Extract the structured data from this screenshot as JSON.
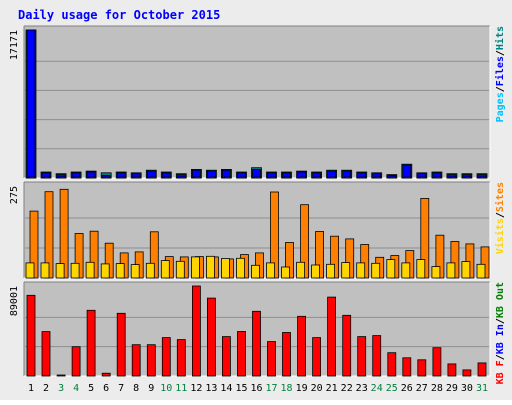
{
  "colors": {
    "background": "#ececec",
    "panel": "#c0c0c0",
    "grid": "#8e8e8e",
    "title": "#0000ff",
    "pages": "#00c0ff",
    "files": "#0000ff",
    "hits": "#008080",
    "visits": "#ffd500",
    "sites": "#ff8000",
    "kbin": "#0000ff",
    "kbout": "#008000",
    "kbf": "#ff0000",
    "weekend": "#008040",
    "day": "#000000"
  },
  "chart_data": {
    "title": "Daily usage for October 2015",
    "x": [
      "1",
      "2",
      "3",
      "4",
      "5",
      "6",
      "7",
      "8",
      "9",
      "10",
      "11",
      "12",
      "13",
      "14",
      "15",
      "16",
      "17",
      "18",
      "19",
      "20",
      "21",
      "22",
      "23",
      "24",
      "25",
      "26",
      "27",
      "28",
      "29",
      "30",
      "31"
    ],
    "weekend_days": [
      "3",
      "4",
      "10",
      "11",
      "17",
      "18",
      "24",
      "25",
      "31"
    ],
    "panels": [
      {
        "type": "bar",
        "ylabel_tick": "17171",
        "ylim": [
          0,
          17171
        ],
        "legend": [
          "Pages",
          "Files",
          "Hits"
        ],
        "series": [
          {
            "name": "Hits",
            "values": [
              17171,
              700,
              500,
              700,
              800,
              600,
              700,
              600,
              900,
              700,
              500,
              1000,
              900,
              1000,
              700,
              1200,
              700,
              700,
              800,
              700,
              900,
              900,
              700,
              600,
              400,
              1600,
              600,
              700,
              500,
              500,
              500
            ]
          },
          {
            "name": "Files",
            "values": [
              17171,
              600,
              400,
              600,
              700,
              300,
              600,
              500,
              800,
              600,
              400,
              900,
              800,
              900,
              600,
              1000,
              600,
              600,
              700,
              600,
              800,
              800,
              600,
              500,
              300,
              1500,
              500,
              600,
              400,
              400,
              400
            ]
          },
          {
            "name": "Pages",
            "values": [
              30,
              20,
              20,
              20,
              20,
              20,
              20,
              20,
              20,
              20,
              20,
              20,
              20,
              20,
              20,
              20,
              20,
              20,
              20,
              20,
              20,
              20,
              20,
              20,
              20,
              20,
              20,
              20,
              20,
              20,
              20
            ]
          }
        ]
      },
      {
        "type": "bar",
        "ylabel_tick": "275",
        "ylim": [
          0,
          275
        ],
        "legend": [
          "Visits",
          "Sites"
        ],
        "series": [
          {
            "name": "Sites",
            "values": [
              200,
              258,
              265,
              133,
              140,
              104,
              75,
              78,
              138,
              64,
              63,
              64,
              63,
              57,
              70,
              75,
              257,
              106,
              219,
              139,
              125,
              117,
              100,
              62,
              67,
              82,
              238,
              128,
              109,
              102,
              93
            ]
          },
          {
            "name": "Visits",
            "values": [
              45,
              45,
              43,
              44,
              47,
              42,
              43,
              40,
              44,
              52,
              50,
              63,
              65,
              58,
              59,
              38,
              45,
              33,
              47,
              39,
              41,
              46,
              45,
              44,
              55,
              45,
              55,
              34,
              45,
              49,
              41
            ]
          }
        ]
      },
      {
        "type": "bar",
        "ylabel_tick": "89001",
        "ylim": [
          0,
          89001
        ],
        "legend": [
          "KB F",
          "KB In",
          "KB Out"
        ],
        "series": [
          {
            "name": "KB F",
            "values": [
              79800,
              43900,
              0,
              29000,
              65000,
              2800,
              62000,
              31000,
              31000,
              38000,
              36000,
              89001,
              77000,
              39000,
              44000,
              64000,
              34000,
              43000,
              59000,
              38000,
              78000,
              60000,
              39000,
              40000,
              23000,
              18000,
              16000,
              28000,
              12000,
              6000,
              13000
            ]
          }
        ]
      }
    ]
  }
}
